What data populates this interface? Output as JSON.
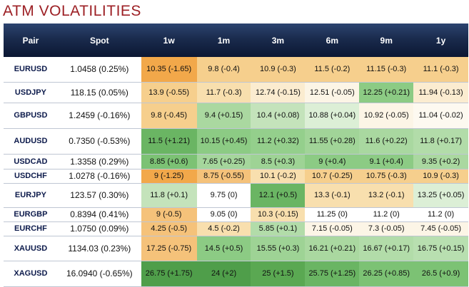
{
  "title": "ATM VOLATILITIES",
  "headers": [
    "Pair",
    "Spot",
    "1w",
    "1m",
    "3m",
    "6m",
    "9m",
    "1y"
  ],
  "rows": [
    {
      "pair": "EURUSD",
      "spot": "1.0458 (0.25%)",
      "cells": [
        "10.35 (-1.65)",
        "9.8 (-0.4)",
        "10.9 (-0.3)",
        "11.5 (-0.2)",
        "11.15 (-0.3)",
        "11.1 (-0.3)"
      ],
      "colors": [
        "#f2a84a",
        "#f6cf8d",
        "#f6cf8d",
        "#f6cf8d",
        "#f6cf8d",
        "#f6cf8d"
      ]
    },
    {
      "pair": "USDJPY",
      "spot": "118.15 (0.05%)",
      "cells": [
        "13.9 (-0.55)",
        "11.7 (-0.3)",
        "12.74 (-0.15)",
        "12.51 (-0.05)",
        "12.25 (+0.21)",
        "11.94 (-0.13)"
      ],
      "colors": [
        "#f6cf8d",
        "#f8dfae",
        "#fbecd0",
        "#fcf5e6",
        "#8ccb84",
        "#fbecd0"
      ]
    },
    {
      "pair": "GBPUSD",
      "spot": "1.2459 (-0.16%)",
      "cells": [
        "9.8 (-0.45)",
        "9.4 (+0.15)",
        "10.4 (+0.08)",
        "10.88 (+0.04)",
        "10.92 (-0.05)",
        "11.04 (-0.02)"
      ],
      "colors": [
        "#f6cf8d",
        "#aad8a0",
        "#c4e3bb",
        "#dcefd6",
        "#fcf5e6",
        "#fdf9f0"
      ]
    },
    {
      "pair": "AUDUSD",
      "spot": "0.7350 (-0.53%)",
      "cells": [
        "11.5 (+1.21)",
        "10.15 (+0.45)",
        "11.2 (+0.32)",
        "11.55 (+0.28)",
        "11.6 (+0.22)",
        "11.8 (+0.17)"
      ],
      "colors": [
        "#6ab563",
        "#8ccb84",
        "#94cf8c",
        "#a1d498",
        "#a9d8a0",
        "#b2dca9"
      ]
    },
    {
      "pair": "USDCAD",
      "spot": "1.3358 (0.29%)",
      "cells": [
        "8.85 (+0.6)",
        "7.65 (+0.25)",
        "8.5 (+0.3)",
        "9 (+0.4)",
        "9.1 (+0.4)",
        "9.35 (+0.2)"
      ],
      "colors": [
        "#7cc274",
        "#a5d69c",
        "#9ed395",
        "#8ccb84",
        "#8ccb84",
        "#aad8a0"
      ]
    },
    {
      "pair": "USDCHF",
      "spot": "1.0278 (-0.16%)",
      "cells": [
        "9 (-1.25)",
        "8.75 (-0.55)",
        "10.1 (-0.2)",
        "10.7 (-0.25)",
        "10.75 (-0.3)",
        "10.9 (-0.3)"
      ],
      "colors": [
        "#f2a84a",
        "#f5c27a",
        "#f8dfae",
        "#f6cf8d",
        "#f6cf8d",
        "#f6cf8d"
      ]
    },
    {
      "pair": "EURJPY",
      "spot": "123.57 (0.30%)",
      "cells": [
        "11.8 (+0.1)",
        "9.75 (0)",
        "12.1 (+0.5)",
        "13.3 (-0.1)",
        "13.2 (-0.1)",
        "13.25 (+0.05)"
      ],
      "colors": [
        "#c4e3bb",
        "#ffffff",
        "#6ab563",
        "#f8dfae",
        "#f8dfae",
        "#dcefd6"
      ]
    },
    {
      "pair": "EURGBP",
      "spot": "0.8394 (0.41%)",
      "cells": [
        "9 (-0.5)",
        "9.05 (0)",
        "10.3 (-0.15)",
        "11.25 (0)",
        "11.2 (0)",
        "11.2 (0)"
      ],
      "colors": [
        "#f5c27a",
        "#ffffff",
        "#f8dfae",
        "#ffffff",
        "#ffffff",
        "#ffffff"
      ]
    },
    {
      "pair": "EURCHF",
      "spot": "1.0750 (0.09%)",
      "cells": [
        "4.25 (-0.5)",
        "4.5 (-0.2)",
        "5.85 (+0.1)",
        "7.15 (-0.05)",
        "7.3 (-0.05)",
        "7.45 (-0.05)"
      ],
      "colors": [
        "#f5c27a",
        "#f8dfae",
        "#b2dca9",
        "#fcf5e6",
        "#fcf5e6",
        "#fcf5e6"
      ]
    },
    {
      "pair": "XAUUSD",
      "spot": "1134.03 (0.23%)",
      "cells": [
        "17.25 (-0.75)",
        "14.5 (+0.5)",
        "15.55 (+0.3)",
        "16.21 (+0.21)",
        "16.67 (+0.17)",
        "16.75 (+0.15)"
      ],
      "colors": [
        "#f5c27a",
        "#8ccb84",
        "#9ed395",
        "#aad8a0",
        "#b2dca9",
        "#b8dfb0"
      ]
    },
    {
      "pair": "XAGUSD",
      "spot": "16.0940 (-0.65%)",
      "cells": [
        "26.75 (+1.75)",
        "24 (+2)",
        "25 (+1.5)",
        "25.75 (+1.25)",
        "26.25 (+0.85)",
        "26.5 (+0.9)"
      ],
      "colors": [
        "#4f9e4a",
        "#4f9e4a",
        "#5aa852",
        "#6ab563",
        "#7cc274",
        "#7cc274"
      ]
    }
  ]
}
